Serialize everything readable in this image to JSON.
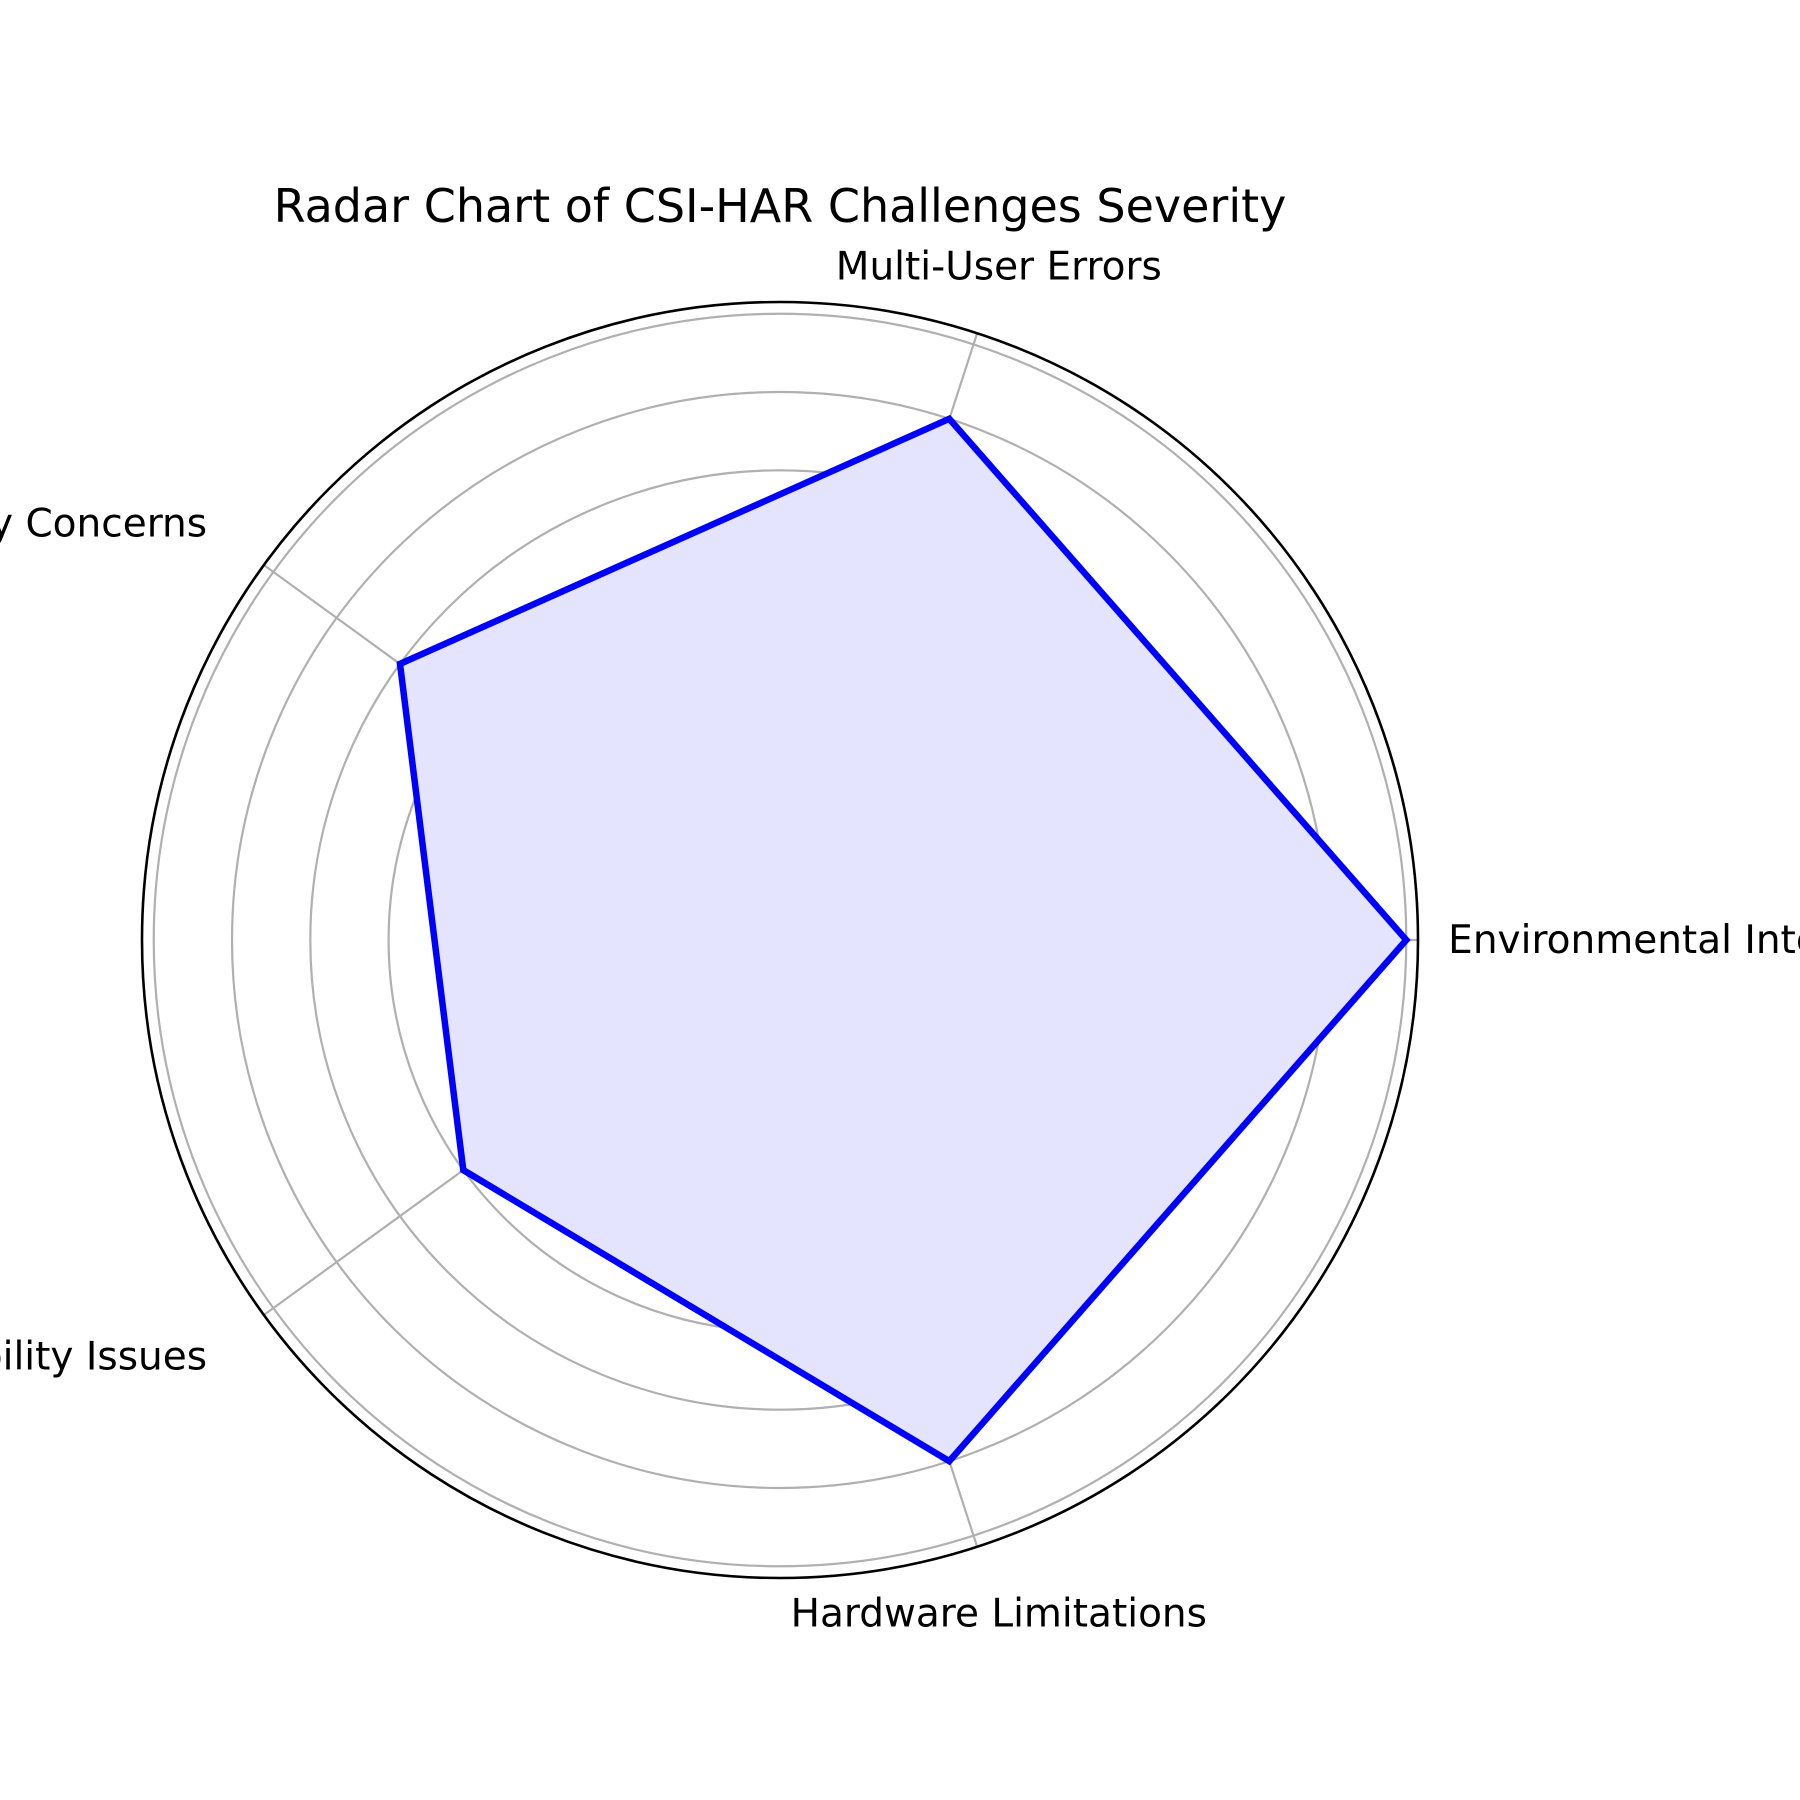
{
  "chart_data": {
    "type": "radar",
    "title": "Radar Chart of CSI-HAR Challenges Severity",
    "categories": [
      "Environmental Interference",
      "Multi-User Errors",
      "Privacy Concerns",
      "Scalability Issues",
      "Hardware Limitations"
    ],
    "series": [
      {
        "values": [
          8,
          7,
          6,
          5,
          7
        ]
      }
    ],
    "rlim": [
      0,
      8.15
    ],
    "rgrid_step": 1,
    "grid": true,
    "colors": {
      "line": "#0000ff",
      "fill": "#e4e4ff",
      "grid": "#b0b0b0",
      "frame": "#000000"
    }
  }
}
